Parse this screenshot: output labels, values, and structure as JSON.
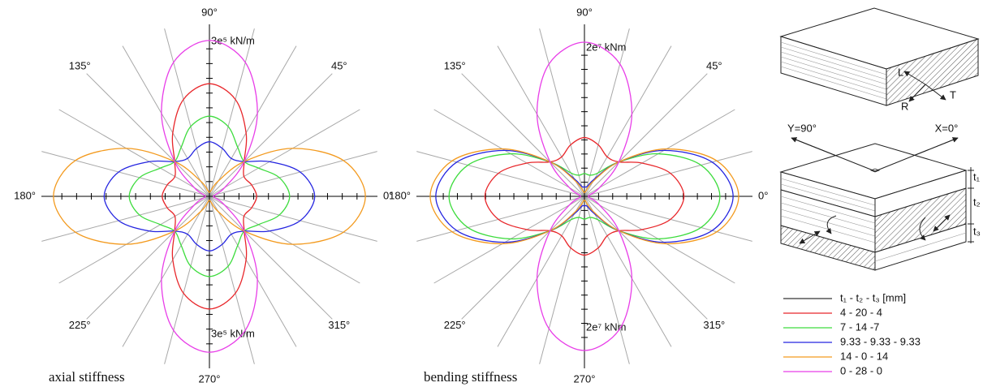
{
  "chart_data": [
    {
      "type": "polar",
      "title": "axial stiffness",
      "theta": [
        0,
        15,
        30,
        45,
        60,
        75,
        90,
        105,
        120,
        135,
        150,
        165,
        180,
        195,
        210,
        225,
        240,
        255,
        270,
        285,
        300,
        315,
        330,
        345
      ],
      "thetaticks": [
        {
          "value": 0,
          "label": "0°"
        },
        {
          "value": 45,
          "label": "45°"
        },
        {
          "value": 90,
          "label": "90°"
        },
        {
          "value": 135,
          "label": "135°"
        },
        {
          "value": 180,
          "label": "180°"
        },
        {
          "value": 225,
          "label": "225°"
        },
        {
          "value": 270,
          "label": "270°"
        },
        {
          "value": 315,
          "label": "315°"
        }
      ],
      "thetagrid": [
        15,
        30,
        45,
        60,
        75,
        105,
        120,
        135,
        150,
        165,
        195,
        210,
        225,
        240,
        255,
        285,
        300,
        315,
        330,
        345
      ],
      "rlim": [
        0,
        330000
      ],
      "rticks": [
        30000,
        60000,
        90000,
        120000,
        150000,
        180000,
        210000,
        240000,
        270000,
        {
          "value": 300000,
          "label": "3e⁵ kN/m"
        }
      ],
      "series": [
        {
          "name": "4 - 20 - 4",
          "color": "#e8262a",
          "values": [
            96000,
            89000,
            81000,
            100000,
            149000,
            204000,
            229000,
            204000,
            149000,
            100000,
            81000,
            89000,
            96000,
            89000,
            81000,
            100000,
            149000,
            204000,
            229000,
            204000,
            149000,
            100000,
            81000,
            89000
          ]
        },
        {
          "name": "7 - 14 -7",
          "color": "#3ddc3d",
          "values": [
            163000,
            147000,
            115000,
            100000,
            115000,
            147000,
            163000,
            147000,
            115000,
            100000,
            115000,
            147000,
            163000,
            147000,
            115000,
            100000,
            115000,
            147000,
            163000,
            147000,
            115000,
            100000,
            115000,
            147000
          ]
        },
        {
          "name": "9.33 - 9.33 - 9.33",
          "color": "#2424e0",
          "values": [
            214000,
            191000,
            141000,
            100000,
            89000,
            101000,
            111000,
            101000,
            89000,
            100000,
            141000,
            191000,
            214000,
            191000,
            141000,
            100000,
            89000,
            101000,
            111000,
            101000,
            89000,
            100000,
            141000,
            191000
          ]
        },
        {
          "name": "14 - 0 - 14",
          "color": "#f39a1e",
          "values": [
            317000,
            282000,
            195000,
            100000,
            36000,
            12000,
            8000,
            12000,
            36000,
            100000,
            195000,
            282000,
            317000,
            282000,
            195000,
            100000,
            36000,
            12000,
            8000,
            12000,
            36000,
            100000,
            195000,
            282000
          ]
        },
        {
          "name": "0 - 28 - 0",
          "color": "#e83ee8",
          "values": [
            8000,
            12000,
            36000,
            100000,
            195000,
            282000,
            317000,
            282000,
            195000,
            100000,
            36000,
            12000,
            8000,
            12000,
            36000,
            100000,
            195000,
            282000,
            317000,
            282000,
            195000,
            100000,
            36000,
            12000
          ]
        }
      ]
    },
    {
      "type": "polar",
      "title": "bending stiffness",
      "theta": [
        0,
        15,
        30,
        45,
        60,
        75,
        90,
        105,
        120,
        135,
        150,
        165,
        180,
        195,
        210,
        225,
        240,
        255,
        270,
        285,
        300,
        315,
        330,
        345
      ],
      "thetaticks": [
        {
          "value": 0,
          "label": "0°"
        },
        {
          "value": 45,
          "label": "45°"
        },
        {
          "value": 90,
          "label": "90°"
        },
        {
          "value": 135,
          "label": "135°"
        },
        {
          "value": 180,
          "label": "180°"
        },
        {
          "value": 225,
          "label": "225°"
        },
        {
          "value": 270,
          "label": "270°"
        },
        {
          "value": 315,
          "label": "315°"
        }
      ],
      "thetagrid": [
        15,
        30,
        45,
        60,
        75,
        105,
        120,
        135,
        150,
        165,
        195,
        210,
        225,
        240,
        255,
        285,
        300,
        315,
        330,
        345
      ],
      "rlim": [
        0,
        23000000
      ],
      "rticks": [
        2000000,
        4000000,
        6000000,
        8000000,
        10000000,
        12000000,
        14000000,
        16000000,
        18000000,
        {
          "value": 20000000,
          "label": "2e⁷ kNm"
        }
      ],
      "series": [
        {
          "name": "4 - 20 - 4",
          "color": "#e8262a",
          "values": [
            14100000,
            12620000,
            9430000,
            6900000,
            6460000,
            7560000,
            8330000,
            7560000,
            6460000,
            6900000,
            9430000,
            12620000,
            14100000,
            12620000,
            9430000,
            6900000,
            6460000,
            7560000,
            8330000,
            7560000,
            6460000,
            6900000,
            9430000,
            12620000
          ]
        },
        {
          "name": "7 - 14 -7",
          "color": "#3ddc3d",
          "values": [
            19190000,
            17090000,
            12060000,
            6900000,
            3830000,
            3100000,
            3230000,
            3100000,
            3830000,
            6900000,
            12060000,
            17090000,
            19190000,
            17090000,
            12060000,
            6900000,
            3830000,
            3100000,
            3230000,
            3100000,
            3830000,
            6900000,
            12060000,
            17090000
          ]
        },
        {
          "name": "9.33 - 9.33 - 9.33",
          "color": "#2424e0",
          "values": [
            21060000,
            18730000,
            13030000,
            6900000,
            2860000,
            1450000,
            1360000,
            1450000,
            2860000,
            6900000,
            13030000,
            18730000,
            21060000,
            18730000,
            13030000,
            6900000,
            2860000,
            1450000,
            1360000,
            1450000,
            2860000,
            6900000,
            13030000,
            18730000
          ]
        },
        {
          "name": "14 - 0 - 14",
          "color": "#f39a1e",
          "values": [
            21850000,
            19420000,
            13440000,
            6900000,
            2460000,
            760000,
            580000,
            760000,
            2460000,
            6900000,
            13440000,
            19420000,
            21850000,
            19420000,
            13440000,
            6900000,
            2460000,
            760000,
            580000,
            760000,
            2460000,
            6900000,
            13440000,
            19420000
          ]
        },
        {
          "name": "0 - 28 - 0",
          "color": "#e83ee8",
          "values": [
            580000,
            760000,
            2460000,
            6900000,
            13440000,
            19420000,
            21850000,
            19420000,
            13440000,
            6900000,
            2460000,
            760000,
            580000,
            760000,
            2460000,
            6900000,
            13440000,
            19420000,
            21850000,
            19420000,
            13440000,
            6900000,
            2460000,
            760000
          ]
        }
      ]
    }
  ],
  "legend_title": "t₁ - t₂ - t₃ [mm]",
  "diagram": {
    "labels": [
      "L",
      "T",
      "R",
      "Y=90°",
      "X=0°",
      "t₁",
      "t₂",
      "t₃"
    ]
  }
}
